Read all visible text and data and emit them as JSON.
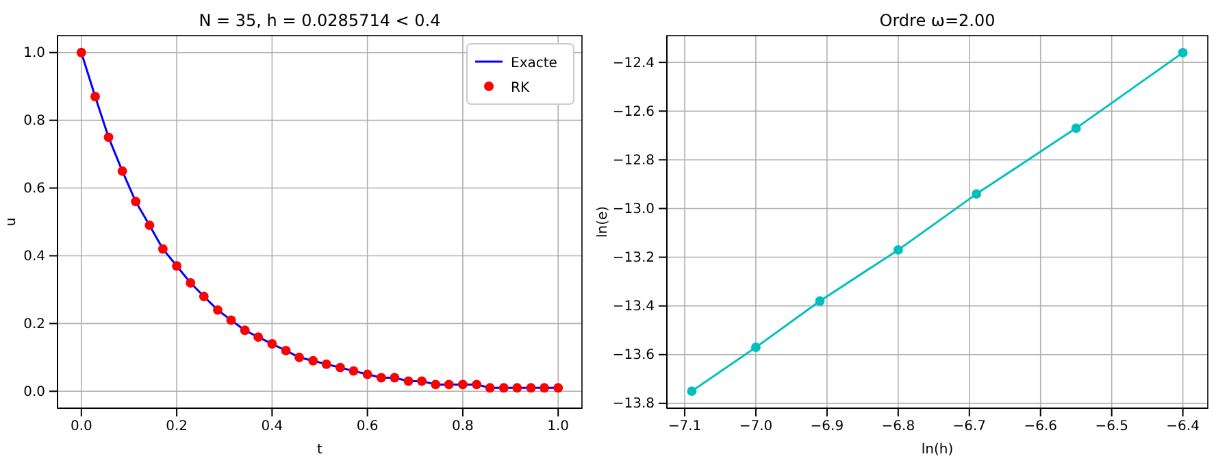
{
  "chart_data": [
    {
      "type": "line",
      "title": "N = 35, h = 0.0285714 < 0.4",
      "xlabel": "t",
      "ylabel": "u",
      "x": [
        0,
        0.029,
        0.057,
        0.086,
        0.114,
        0.143,
        0.171,
        0.2,
        0.229,
        0.257,
        0.286,
        0.314,
        0.343,
        0.371,
        0.4,
        0.429,
        0.457,
        0.486,
        0.514,
        0.543,
        0.571,
        0.6,
        0.629,
        0.657,
        0.686,
        0.714,
        0.743,
        0.771,
        0.8,
        0.829,
        0.857,
        0.886,
        0.914,
        0.943,
        0.971,
        1.0
      ],
      "series": [
        {
          "name": "Exacte",
          "color": "#0000ff",
          "values": [
            1.0,
            0.87,
            0.75,
            0.65,
            0.56,
            0.49,
            0.42,
            0.37,
            0.32,
            0.28,
            0.24,
            0.21,
            0.18,
            0.16,
            0.14,
            0.12,
            0.1,
            0.09,
            0.08,
            0.07,
            0.06,
            0.05,
            0.04,
            0.04,
            0.03,
            0.03,
            0.02,
            0.02,
            0.02,
            0.02,
            0.01,
            0.01,
            0.01,
            0.01,
            0.01,
            0.01
          ]
        },
        {
          "name": "RK",
          "type": "scatter",
          "color": "#ff0000",
          "marker": "circle",
          "values": [
            1.0,
            0.87,
            0.75,
            0.65,
            0.56,
            0.49,
            0.42,
            0.37,
            0.32,
            0.28,
            0.24,
            0.21,
            0.18,
            0.16,
            0.14,
            0.12,
            0.1,
            0.09,
            0.08,
            0.07,
            0.06,
            0.05,
            0.04,
            0.04,
            0.03,
            0.03,
            0.02,
            0.02,
            0.02,
            0.02,
            0.01,
            0.01,
            0.01,
            0.01,
            0.01,
            0.01
          ]
        }
      ],
      "xlim": [
        -0.05,
        1.05
      ],
      "xticks": [
        {
          "value": 0,
          "label": "0.0"
        },
        {
          "value": 0.2,
          "label": "0.2"
        },
        {
          "value": 0.4,
          "label": "0.4"
        },
        {
          "value": 0.6,
          "label": "0.6"
        },
        {
          "value": 0.8,
          "label": "0.8"
        },
        {
          "value": 1,
          "label": "1.0"
        }
      ],
      "ylim": [
        -0.05,
        1.05
      ],
      "yticks": [
        {
          "value": 0,
          "label": "0.0"
        },
        {
          "value": 0.2,
          "label": "0.2"
        },
        {
          "value": 0.4,
          "label": "0.4"
        },
        {
          "value": 0.6,
          "label": "0.6"
        },
        {
          "value": 0.8,
          "label": "0.8"
        },
        {
          "value": 1,
          "label": "1.0"
        }
      ],
      "grid": true,
      "legend": "top right"
    },
    {
      "type": "line",
      "title": "Ordre ω=2.00",
      "xlabel": "ln(h)",
      "ylabel": "ln(e)",
      "x": [
        -7.09,
        -7.0,
        -6.91,
        -6.8,
        -6.69,
        -6.55,
        -6.4
      ],
      "series": [
        {
          "color": "#00bfbf",
          "marker": "circle",
          "values": [
            -13.75,
            -13.57,
            -13.38,
            -13.17,
            -12.94,
            -12.67,
            -12.36
          ]
        }
      ],
      "xlim": [
        -7.125,
        -6.365
      ],
      "xticks": [
        {
          "value": -7.1,
          "label": "−7.1"
        },
        {
          "value": -7.0,
          "label": "−7.0"
        },
        {
          "value": -6.9,
          "label": "−6.9"
        },
        {
          "value": -6.8,
          "label": "−6.8"
        },
        {
          "value": -6.7,
          "label": "−6.7"
        },
        {
          "value": -6.6,
          "label": "−6.6"
        },
        {
          "value": -6.5,
          "label": "−6.5"
        },
        {
          "value": -6.4,
          "label": "−6.4"
        }
      ],
      "ylim": [
        -13.82,
        -12.29
      ],
      "yticks": [
        {
          "value": -13.8,
          "label": "−13.8"
        },
        {
          "value": -13.6,
          "label": "−13.6"
        },
        {
          "value": -13.4,
          "label": "−13.4"
        },
        {
          "value": -13.2,
          "label": "−13.2"
        },
        {
          "value": -13.0,
          "label": "−13.0"
        },
        {
          "value": -12.8,
          "label": "−12.8"
        },
        {
          "value": -12.6,
          "label": "−12.6"
        },
        {
          "value": -12.4,
          "label": "−12.4"
        }
      ],
      "grid": true
    }
  ]
}
